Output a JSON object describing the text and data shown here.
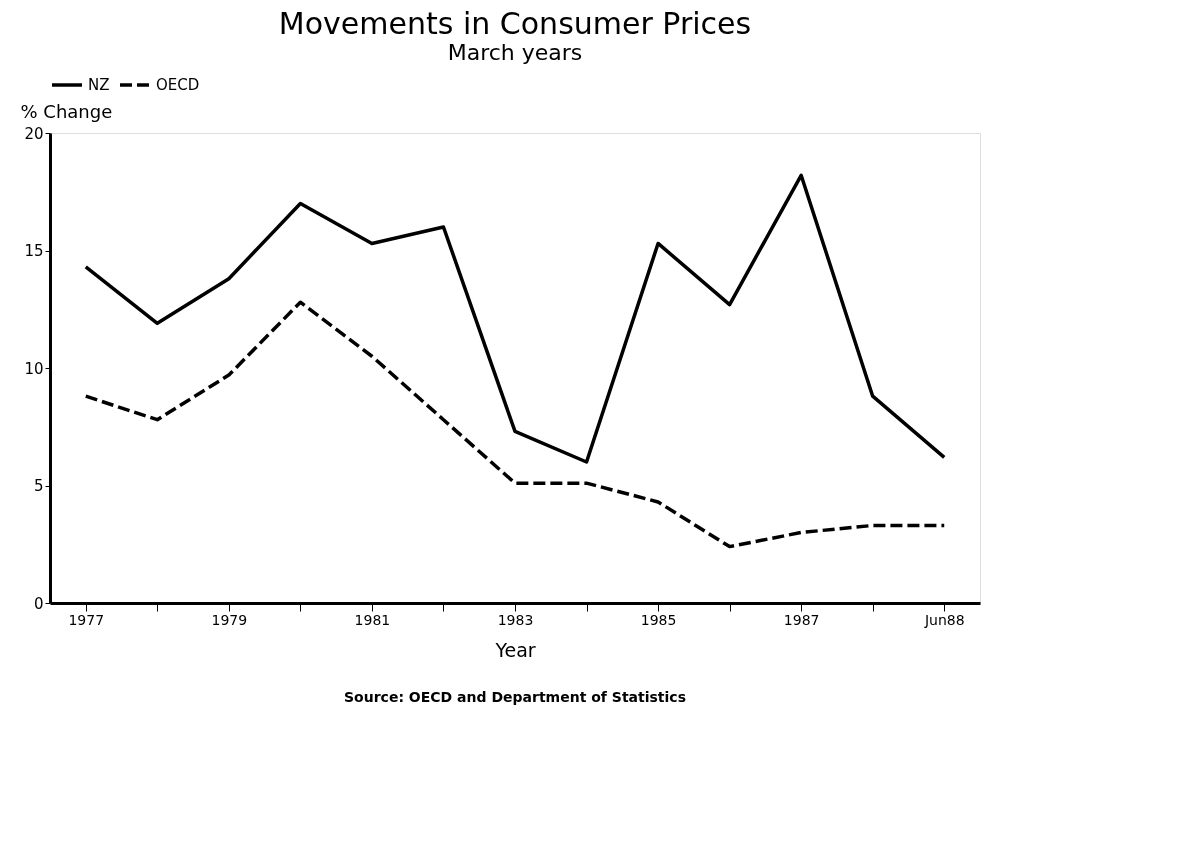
{
  "chart_data": {
    "type": "line",
    "title": "Movements in Consumer Prices",
    "subtitle": "March years",
    "xlabel": "Year",
    "ylabel": "% Change",
    "categories": [
      "1977",
      null,
      "1979",
      null,
      "1981",
      null,
      "1983",
      null,
      "1985",
      null,
      "1987",
      null,
      "Jun88"
    ],
    "series": [
      {
        "name": "NZ",
        "color": "#000000",
        "line_style": "solid",
        "values": [
          14.3,
          11.9,
          13.8,
          17.0,
          15.3,
          16.0,
          7.3,
          6.0,
          15.3,
          12.7,
          18.2,
          8.8,
          6.2
        ]
      },
      {
        "name": "OECD",
        "color": "#000000",
        "line_style": "dashed",
        "values": [
          8.8,
          7.8,
          9.7,
          12.8,
          10.5,
          7.8,
          5.1,
          5.1,
          4.3,
          2.4,
          3.0,
          3.3,
          3.3
        ]
      }
    ],
    "ylim": [
      0,
      20
    ],
    "yticks": [
      0,
      5,
      10,
      15,
      20
    ],
    "grid": false,
    "legend": "top",
    "marker": "none",
    "annotations": [
      "Source: OECD and Department of Statistics"
    ]
  }
}
